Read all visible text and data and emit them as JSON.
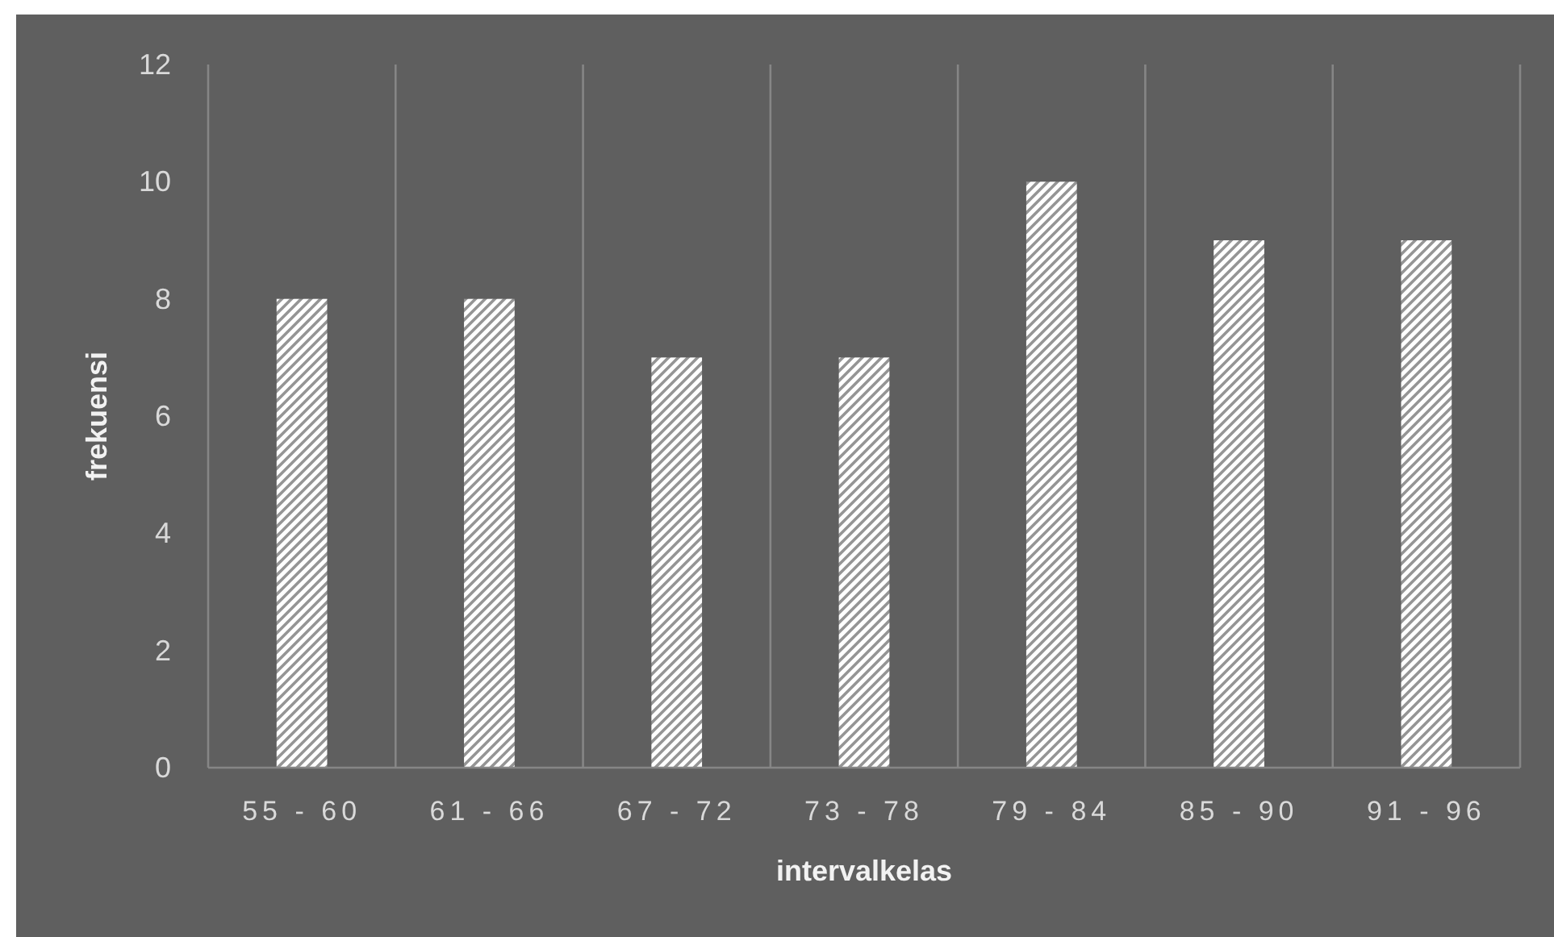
{
  "chart_data": {
    "type": "bar",
    "categories": [
      "55 - 60",
      "61 - 66",
      "67 - 72",
      "73 - 78",
      "79 - 84",
      "85 - 90",
      "91 - 96"
    ],
    "values": [
      8,
      8,
      7,
      7,
      10,
      9,
      9
    ],
    "color": "#ffffff",
    "xlabel": "intervalkelas",
    "ylabel": "frekuensi",
    "ylim": [
      0,
      12
    ],
    "yticks": [
      0,
      2,
      4,
      6,
      8,
      10,
      12
    ],
    "grid": "x"
  }
}
